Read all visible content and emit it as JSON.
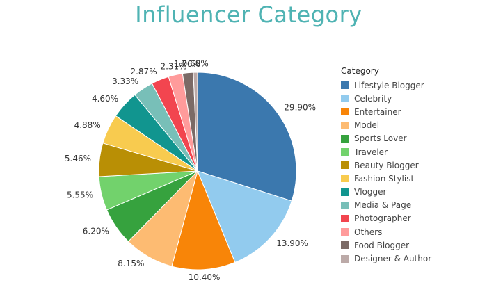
{
  "chart_data": {
    "type": "pie",
    "title": "Influencer Category",
    "legend_title": "Category",
    "legend_position": "right",
    "slices": [
      {
        "label": "Lifestyle Blogger",
        "value": 29.9,
        "display": "29.90%",
        "color": "#3b78ae"
      },
      {
        "label": "Celebrity",
        "value": 13.9,
        "display": "13.90%",
        "color": "#92cbee"
      },
      {
        "label": "Entertainer",
        "value": 10.4,
        "display": "10.40%",
        "color": "#f88508"
      },
      {
        "label": "Model",
        "value": 8.15,
        "display": "8.15%",
        "color": "#fdbb72"
      },
      {
        "label": "Sports Lover",
        "value": 6.2,
        "display": "6.20%",
        "color": "#36a23e"
      },
      {
        "label": "Traveler",
        "value": 5.55,
        "display": "5.55%",
        "color": "#72d26c"
      },
      {
        "label": "Beauty Blogger",
        "value": 5.46,
        "display": "5.46%",
        "color": "#b98f05"
      },
      {
        "label": "Fashion Stylist",
        "value": 4.88,
        "display": "4.88%",
        "color": "#f8cb4f"
      },
      {
        "label": "Vlogger",
        "value": 4.6,
        "display": "4.60%",
        "color": "#11958f"
      },
      {
        "label": "Media & Page",
        "value": 3.33,
        "display": "3.33%",
        "color": "#78bfb8"
      },
      {
        "label": "Photographer",
        "value": 2.87,
        "display": "2.87%",
        "color": "#f2454f"
      },
      {
        "label": "Others",
        "value": 2.31,
        "display": "2.31%",
        "color": "#ff9b9b"
      },
      {
        "label": "Food Blogger",
        "value": 1.76,
        "display": "1.76%",
        "color": "#7b6a66"
      },
      {
        "label": "Designer & Author",
        "value": 0.68,
        "display": "0.68%",
        "color": "#bcaaa8"
      }
    ]
  }
}
